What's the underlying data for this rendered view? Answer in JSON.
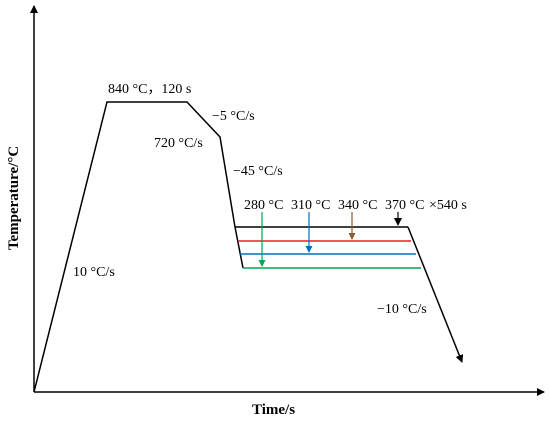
{
  "axes": {
    "x_label": "Time/s",
    "y_label": "Temperature/°C"
  },
  "annotations": {
    "holding": "840 °C，120 s",
    "cool_rate_1": "−5 °C/s",
    "intermediate_temp": "720 °C/s",
    "cool_rate_2": "−45 °C/s",
    "heat_rate": "10 °C/s",
    "final_cool_rate": "−10 °C/s",
    "partition_time": "×540 s"
  },
  "partition_temps": [
    {
      "label": "280 °C",
      "color": "#00a651"
    },
    {
      "label": "310 °C",
      "color": "#0072bc"
    },
    {
      "label": "340 °C",
      "color": "#ed1c24"
    },
    {
      "label": "370 °C",
      "color": "#000000"
    }
  ],
  "colors": {
    "line": "#000000",
    "arrow_340": "#8b5a2b"
  }
}
